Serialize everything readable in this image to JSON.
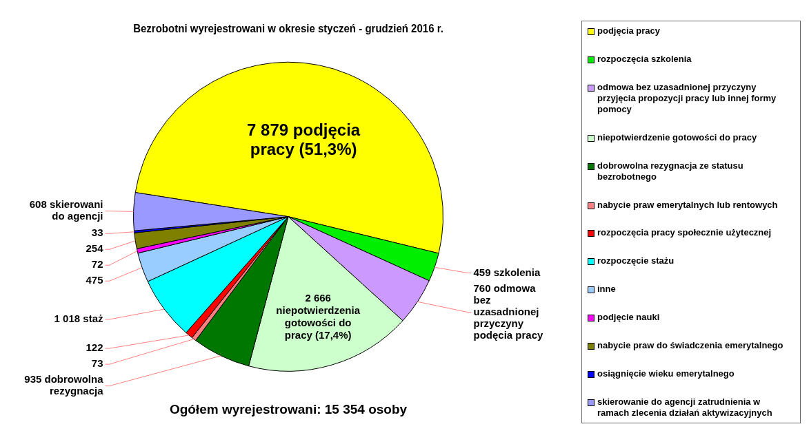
{
  "chart_data": {
    "type": "pie",
    "title": "Bezrobotni wyrejestrowani w okresie styczeń - grudzień 2016 r.",
    "categories": [
      "podjęcia pracy",
      "rozpoczęcia szkolenia",
      "odmowa bez uzasadnionej przyczyny przyjęcia propozycji pracy lub innej formy pomocy",
      "niepotwierdzenie gotowości do pracy",
      "dobrowolna rezygnacja ze statusu bezrobotnego",
      "nabycie praw emerytalnych lub rentowych",
      "rozpoczęcia pracy społecznie użytecznej",
      "rozpoczęcie stażu",
      "inne",
      "podjęcie nauki",
      "nabycie praw do świadczenia emerytalnego",
      "osiągnięcie wieku emerytalnego",
      "skierowanie do agencji zatrudnienia w ramach zlecenia działań aktywizacyjnych"
    ],
    "values": [
      7879,
      459,
      760,
      2666,
      935,
      73,
      122,
      1018,
      475,
      72,
      254,
      33,
      608
    ],
    "colors": [
      "#ffff00",
      "#00ee00",
      "#cc99ff",
      "#ccffcc",
      "#007700",
      "#ff8080",
      "#ff0000",
      "#00ffff",
      "#99ccff",
      "#ff00ff",
      "#808000",
      "#0000ff",
      "#9999ff"
    ],
    "value_labels": [
      "7 879 podjęcia pracy (51,3%)",
      "459 szkolenia",
      "760 odmowa bez uzasadnionej przyczyny podęcia pracy",
      "2 666 niepotwierdzenia gotowości do pracy (17,4%)",
      "935 dobrowolna rezygnacja",
      "73",
      "122",
      "1 018 staż",
      "475",
      "72",
      "254",
      "33",
      "608 skierowani do agencji"
    ],
    "annotations": [
      "Ogółem wyrejestrowani: 15 354 osoby"
    ],
    "legend": "right"
  }
}
